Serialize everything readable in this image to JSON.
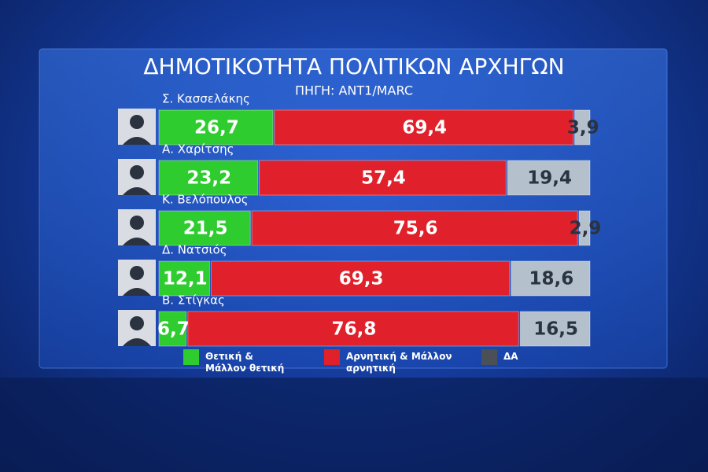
{
  "chart_data": {
    "type": "bar",
    "orientation": "horizontal",
    "stacked": true,
    "title": "ΔΗΜΟΤΙΚΟΤΗΤΑ ΠΟΛΙΤΙΚΩΝ ΑΡΧΗΓΩΝ",
    "subtitle": "ΠΗΓΗ: ANT1/MARC",
    "categories": [
      "Σ. Κασσελάκης",
      "Α. Χαρίτσης",
      "Κ. Βελόπουλος",
      "Δ. Νατσιός",
      "Β. Στίγκας"
    ],
    "series": [
      {
        "name": "Θετική & Μάλλον θετική",
        "color": "#2ecc2e",
        "values": [
          26.7,
          23.2,
          21.5,
          12.1,
          6.7
        ],
        "value_labels": [
          "26,7",
          "23,2",
          "21,5",
          "12,1",
          "6,7"
        ]
      },
      {
        "name": "Αρνητική & Μάλλον αρνητική",
        "color": "#e0202a",
        "values": [
          69.4,
          57.4,
          75.6,
          69.3,
          76.8
        ],
        "value_labels": [
          "69,4",
          "57,4",
          "75,6",
          "69,3",
          "76,8"
        ]
      },
      {
        "name": "ΔΑ",
        "color": "#b4c0cc",
        "values": [
          3.9,
          19.4,
          2.9,
          18.6,
          16.5
        ],
        "value_labels": [
          "3,9",
          "19,4",
          "2,9",
          "18,6",
          "16,5"
        ]
      }
    ]
  }
}
